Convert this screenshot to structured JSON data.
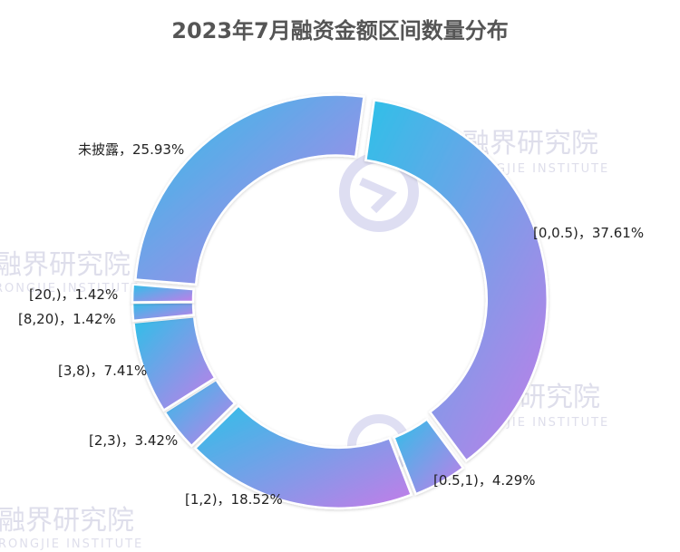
{
  "chart_data": {
    "type": "pie",
    "variant": "donut",
    "title": "2023年7月融资金额区间数量分布",
    "series": [
      {
        "label": "[0,0.5)",
        "value": 37.61,
        "value_label": "37.61%"
      },
      {
        "label": "[0.5,1)",
        "value": 4.29,
        "value_label": "4.29%"
      },
      {
        "label": "[1,2)",
        "value": 18.52,
        "value_label": "18.52%"
      },
      {
        "label": "[2,3)",
        "value": 3.42,
        "value_label": "3.42%"
      },
      {
        "label": "[3,8)",
        "value": 7.41,
        "value_label": "7.41%"
      },
      {
        "label": "[8,20)",
        "value": 1.42,
        "value_label": "1.42%"
      },
      {
        "label": "[20,)",
        "value": 1.42,
        "value_label": "1.42%"
      },
      {
        "label": "未披露",
        "value": 25.93,
        "value_label": "25.93%"
      }
    ],
    "label_separator": "，",
    "colors": {
      "gradient_start": "#2ec0e8",
      "gradient_end": "#c47ce8"
    }
  },
  "watermark": {
    "text_cn": "融界研究院",
    "text_en": "RONGJIE INSTITUTE"
  }
}
